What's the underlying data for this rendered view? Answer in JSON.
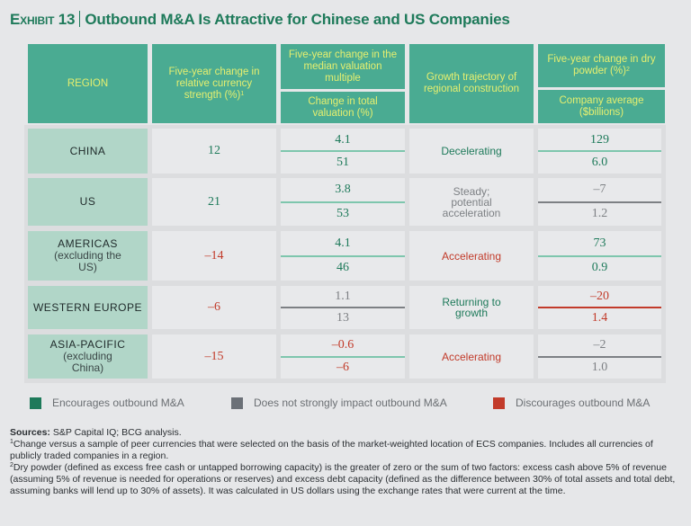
{
  "title": {
    "exhibit": "Exhibit 13",
    "text": "Outbound M&A Is Attractive for Chinese and US Companies"
  },
  "colors": {
    "header_bg": "#4aab92",
    "header_text": "#e6ef6f",
    "region_bg": "#b1d6c8",
    "encourages": "#1e7a5a",
    "neutral": "#7d8084",
    "discourages": "#c23b2a"
  },
  "headers": {
    "region": "REGION",
    "currency": "Five-year change in relative currency strength (%)",
    "currency_sup": "1",
    "valuation_multiple": "Five-year change in the median valuation multiple",
    "total_valuation": "Change in total valuation (%)",
    "construction": "Growth trajectory of regional construction",
    "dry_powder": "Five-year change in dry powder (%)",
    "dry_powder_sup": "2",
    "company_average": "Company average ($billions)"
  },
  "rows": [
    {
      "region": "CHINA",
      "region_sub": "",
      "currency": {
        "value": "12",
        "impact": "encourages"
      },
      "valuation": {
        "multiple": "4.1",
        "total": "51",
        "impact": "encourages"
      },
      "construction": {
        "text": "Decelerating",
        "impact": "encourages"
      },
      "dry_powder": {
        "change": "129",
        "average": "6.0",
        "impact": "encourages"
      }
    },
    {
      "region": "US",
      "region_sub": "",
      "currency": {
        "value": "21",
        "impact": "encourages"
      },
      "valuation": {
        "multiple": "3.8",
        "total": "53",
        "impact": "encourages"
      },
      "construction": {
        "text": "Steady; potential acceleration",
        "impact": "neutral"
      },
      "dry_powder": {
        "change": "–7",
        "average": "1.2",
        "impact": "neutral"
      }
    },
    {
      "region": "AMERICAS",
      "region_sub": "(excluding the US)",
      "currency": {
        "value": "–14",
        "impact": "discourages"
      },
      "valuation": {
        "multiple": "4.1",
        "total": "46",
        "impact": "encourages"
      },
      "construction": {
        "text": "Accelerating",
        "impact": "discourages"
      },
      "dry_powder": {
        "change": "73",
        "average": "0.9",
        "impact": "encourages"
      }
    },
    {
      "region": "WESTERN EUROPE",
      "region_sub": "",
      "currency": {
        "value": "–6",
        "impact": "discourages"
      },
      "valuation": {
        "multiple": "1.1",
        "total": "13",
        "impact": "neutral"
      },
      "construction": {
        "text": "Returning to growth",
        "impact": "encourages"
      },
      "dry_powder": {
        "change": "–20",
        "average": "1.4",
        "impact": "discourages"
      }
    },
    {
      "region": "ASIA-PACIFIC",
      "region_sub": "(excluding China)",
      "currency": {
        "value": "–15",
        "impact": "discourages"
      },
      "valuation": {
        "multiple": "–0.6",
        "total": "–6",
        "impact": "discourages"
      },
      "construction": {
        "text": "Accelerating",
        "impact": "discourages"
      },
      "dry_powder": {
        "change": "–2",
        "average": "1.0",
        "impact": "neutral"
      }
    }
  ],
  "legend": [
    {
      "label": "Encourages outbound M&A",
      "color": "#1e7a5a"
    },
    {
      "label": "Does not strongly impact outbound M&A",
      "color": "#6b7077"
    },
    {
      "label": "Discourages outbound M&A",
      "color": "#c23b2a"
    }
  ],
  "notes": {
    "sources_label": "Sources:",
    "sources_text": "S&P Capital IQ; BCG analysis.",
    "note1_sup": "1",
    "note1": "Change versus a sample of peer currencies that were selected on the basis of the market-weighted location of ECS companies. Includes all currencies of publicly traded companies in a region.",
    "note2_sup": "2",
    "note2": "Dry powder (defined as excess free cash or untapped borrowing capacity) is the greater of zero or the sum of two factors: excess cash above 5% of revenue (assuming 5% of revenue is needed for operations or reserves) and excess debt capacity (defined as the difference between 30% of total assets and total debt, assuming banks will lend up to 30% of assets). It was calculated in US dollars using the exchange rates that were current at the time."
  }
}
